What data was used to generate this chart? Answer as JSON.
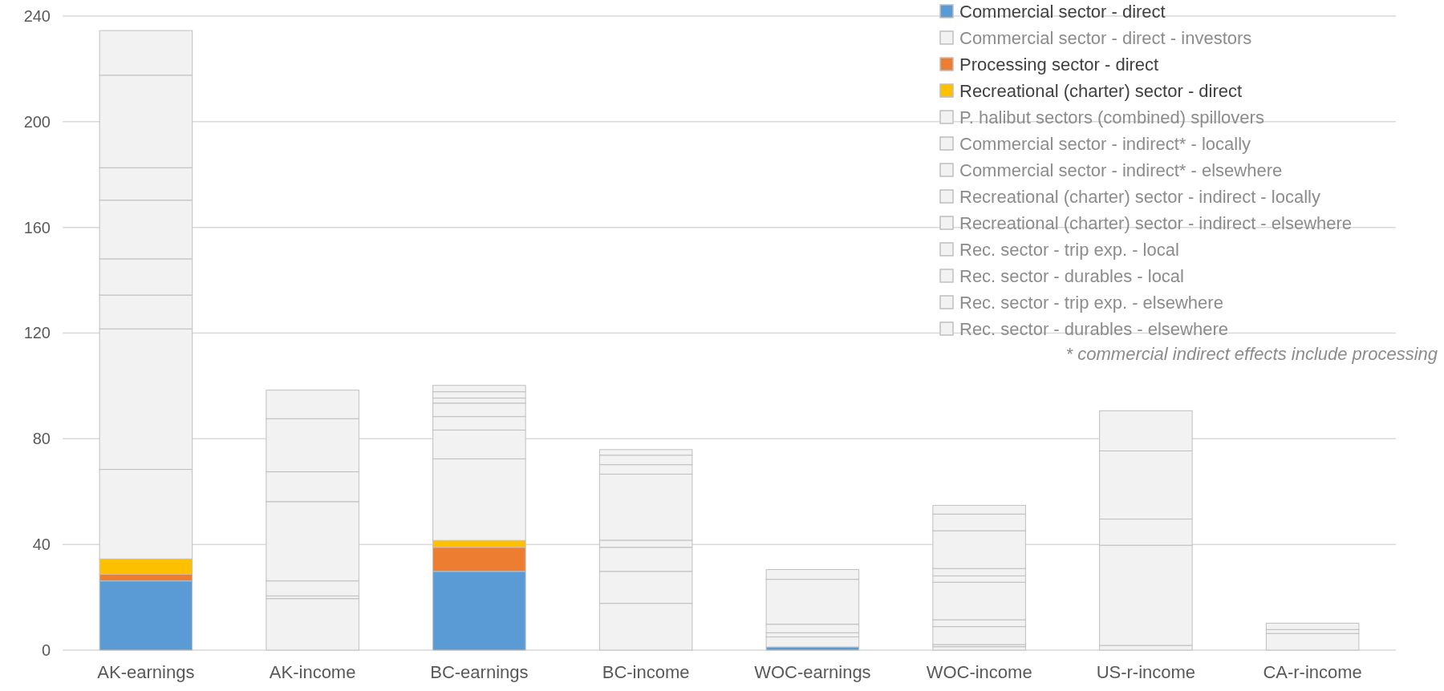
{
  "chart_data": {
    "type": "bar",
    "stacked": true,
    "categories": [
      "AK-earnings",
      "AK-income",
      "BC-earnings",
      "BC-income",
      "WOC-earnings",
      "WOC-income",
      "US-r-income",
      "CA-r-income"
    ],
    "series": [
      {
        "name": "Commercial sector - direct",
        "color": "#5b9bd5",
        "values": [
          26.2,
          0,
          29.8,
          0,
          1.2,
          0,
          0,
          0
        ]
      },
      {
        "name": "Commercial sector - direct - investors",
        "color": "#f2f2f2",
        "values": [
          0,
          19.5,
          0,
          17.7,
          0,
          1.3,
          0,
          0
        ]
      },
      {
        "name": "Processing sector - direct",
        "color": "#ed7d31",
        "values": [
          2.5,
          0,
          9.1,
          0,
          0,
          0,
          0,
          0
        ]
      },
      {
        "name": "Recreational (charter) sector - direct",
        "color": "#ffc000",
        "values": [
          5.8,
          0,
          2.6,
          0,
          0,
          0,
          0,
          0
        ]
      },
      {
        "name": "P. halibut sectors (combined) spillovers",
        "color": "#f2f2f2",
        "values": [
          33.9,
          1.0,
          30.9,
          12.1,
          0,
          0.8,
          0,
          0
        ]
      },
      {
        "name": "Commercial sector - indirect* - locally",
        "color": "#f2f2f2",
        "values": [
          53.2,
          5.7,
          10.9,
          9.1,
          3.8,
          6.8,
          0,
          0
        ]
      },
      {
        "name": "Commercial sector - indirect* - elsewhere",
        "color": "#f2f2f2",
        "values": [
          12.8,
          30,
          5.1,
          2.7,
          1.6,
          2.6,
          0,
          0
        ]
      },
      {
        "name": "Recreational (charter) sector - indirect - locally",
        "color": "#f2f2f2",
        "values": [
          13.7,
          11.3,
          5.1,
          25,
          0,
          14.2,
          1.8,
          0
        ]
      },
      {
        "name": "Recreational (charter) sector - indirect - elsewhere",
        "color": "#f2f2f2",
        "values": [
          22.2,
          20.1,
          1.9,
          3.6,
          3.2,
          2.4,
          37.9,
          0
        ]
      },
      {
        "name": "Rec. sector - trip exp. - local",
        "color": "#f2f2f2",
        "values": [
          12.3,
          10.8,
          2.4,
          3.6,
          17.0,
          2.8,
          9.9,
          6.3
        ]
      },
      {
        "name": "Rec. sector - durables - local",
        "color": "#f2f2f2",
        "values": [
          35,
          0,
          2.4,
          2.1,
          0,
          14.3,
          25.8,
          1.5
        ]
      },
      {
        "name": "Rec. sector - trip exp. - elsewhere",
        "color": "#f2f2f2",
        "values": [
          16.9,
          0,
          0,
          0,
          0,
          6.3,
          15.2,
          2.4
        ]
      },
      {
        "name": "Rec. sector - durables - elsewhere",
        "color": "#f2f2f2",
        "values": [
          0,
          0,
          0,
          0,
          3.7,
          3.3,
          0,
          0
        ]
      }
    ],
    "ylim": [
      0,
      240
    ],
    "yticks": [
      0,
      40,
      80,
      120,
      160,
      200,
      240
    ],
    "grid": "y",
    "legend": "top right",
    "annotations": [
      "* commercial indirect effects include processing"
    ]
  }
}
